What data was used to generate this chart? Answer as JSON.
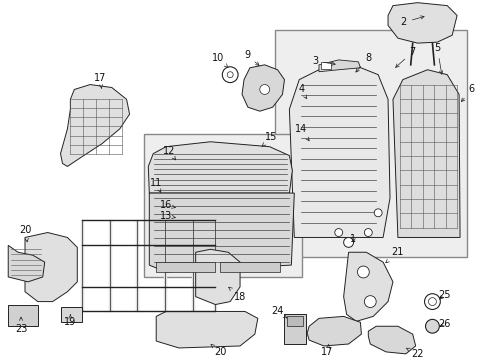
{
  "background_color": "#ffffff",
  "fig_width": 4.89,
  "fig_height": 3.6,
  "dpi": 100,
  "line_color": "#222222",
  "fill_color": "#f5f5f5",
  "hatch_color": "#555555",
  "label_fontsize": 7,
  "label_color": "#111111"
}
